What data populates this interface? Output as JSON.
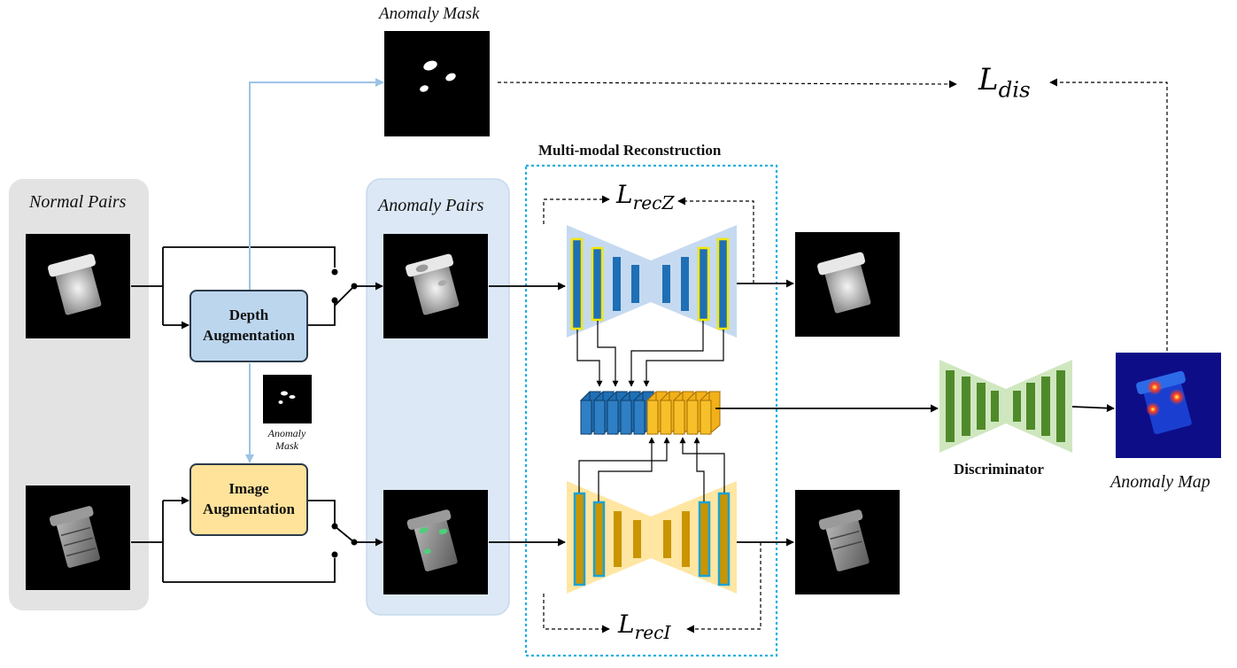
{
  "labels": {
    "anomaly_mask_top": "Anomaly Mask",
    "normal_pairs": "Normal Pairs",
    "anomaly_pairs": "Anomaly Pairs",
    "multimodal_title": "Multi-modal Reconstruction",
    "depth_aug_line1": "Depth",
    "depth_aug_line2": "Augmentation",
    "image_aug_line1": "Image",
    "image_aug_line2": "Augmentation",
    "small_mask_line1": "Anomaly",
    "small_mask_line2": "Mask",
    "discriminator": "Discriminator",
    "anomaly_map": "Anomaly Map"
  },
  "losses": {
    "dis": {
      "base": "L",
      "sub": "dis"
    },
    "recz": {
      "base": "L",
      "sub": "recZ"
    },
    "reci": {
      "base": "L",
      "sub": "recI"
    }
  },
  "colors": {
    "normal_panel": "#e3e3e3",
    "anomaly_panel": "#dce8f5",
    "depth_box": "#bcd6ee",
    "image_box": "#ffe39a",
    "depth_branch": "#1f6fb5",
    "image_branch": "#c99500",
    "discriminator": "#4f8a2a",
    "dotted_frame": "#1ab0e0",
    "blue_arrow": "#9cc3e6"
  }
}
